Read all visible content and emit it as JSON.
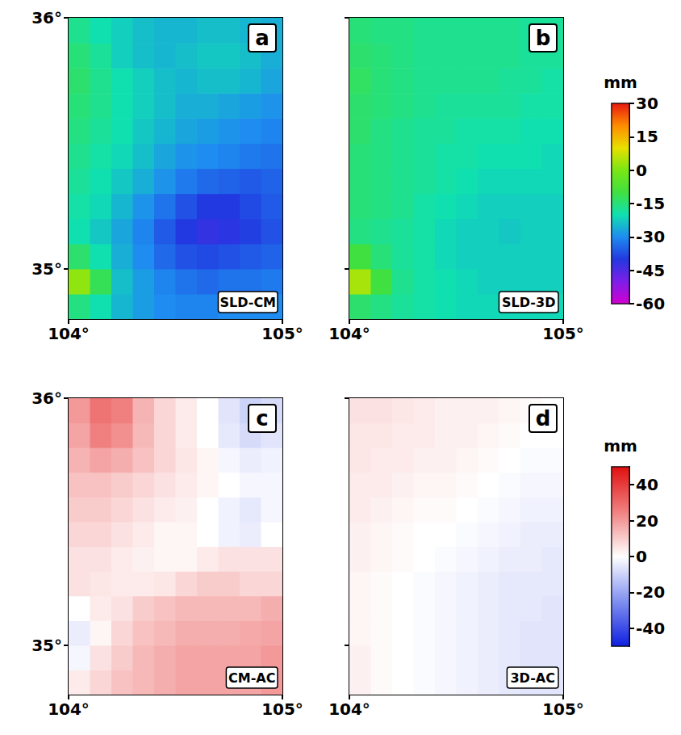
{
  "chart_data": [
    {
      "type": "heatmap",
      "label": "a",
      "title": "SLD-CM",
      "x": [
        104.05,
        104.15,
        104.25,
        104.35,
        104.45,
        104.55,
        104.65,
        104.75,
        104.85,
        104.95
      ],
      "y": [
        34.85,
        34.95,
        35.05,
        35.15,
        35.25,
        35.35,
        35.45,
        35.55,
        35.65,
        35.75,
        35.85,
        35.95
      ],
      "values": [
        [
          -16,
          -20,
          -25,
          -28,
          -30,
          -31,
          -31,
          -30,
          -30,
          -30
        ],
        [
          2,
          -12,
          -24,
          -28,
          -31,
          -33,
          -34,
          -33,
          -33,
          -32
        ],
        [
          -14,
          -20,
          -26,
          -30,
          -34,
          -37,
          -38,
          -37,
          -36,
          -35
        ],
        [
          -20,
          -23,
          -27,
          -31,
          -36,
          -40,
          -42,
          -41,
          -39,
          -37
        ],
        [
          -19,
          -21,
          -25,
          -29,
          -33,
          -37,
          -40,
          -40,
          -38,
          -36
        ],
        [
          -18,
          -20,
          -23,
          -26,
          -29,
          -32,
          -34,
          -35,
          -36,
          -35
        ],
        [
          -17,
          -19,
          -21,
          -24,
          -27,
          -29,
          -30,
          -31,
          -32,
          -33
        ],
        [
          -16,
          -18,
          -20,
          -23,
          -25,
          -27,
          -28,
          -29,
          -30,
          -31
        ],
        [
          -15,
          -17,
          -20,
          -22,
          -24,
          -26,
          -26,
          -27,
          -28,
          -29
        ],
        [
          -14,
          -17,
          -20,
          -22,
          -24,
          -25,
          -24,
          -24,
          -25,
          -27
        ],
        [
          -15,
          -18,
          -22,
          -24,
          -25,
          -24,
          -23,
          -23,
          -24,
          -26
        ],
        [
          -17,
          -20,
          -22,
          -24,
          -25,
          -25,
          -24,
          -24,
          -25,
          -26
        ]
      ],
      "xlim": [
        104,
        105
      ],
      "ylim": [
        34.8,
        36
      ],
      "xticks": [
        {
          "value": 104,
          "label": "104°"
        },
        {
          "value": 105,
          "label": "105°"
        }
      ],
      "yticks": [
        {
          "value": 35,
          "label": "35°"
        },
        {
          "value": 36,
          "label": "36°"
        }
      ]
    },
    {
      "type": "heatmap",
      "label": "b",
      "title": "SLD-3D",
      "x": [
        104.05,
        104.15,
        104.25,
        104.35,
        104.45,
        104.55,
        104.65,
        104.75,
        104.85,
        104.95
      ],
      "y": [
        34.85,
        34.95,
        35.05,
        35.15,
        35.25,
        35.35,
        35.45,
        35.55,
        35.65,
        35.75,
        35.85,
        35.95
      ],
      "values": [
        [
          -14,
          -16,
          -18,
          -19,
          -20,
          -21,
          -21,
          -21,
          -21,
          -21
        ],
        [
          4,
          -10,
          -17,
          -19,
          -20,
          -21,
          -22,
          -22,
          -22,
          -22
        ],
        [
          -10,
          -15,
          -18,
          -19,
          -21,
          -22,
          -22,
          -22,
          -22,
          -22
        ],
        [
          -16,
          -17,
          -18,
          -19,
          -21,
          -22,
          -22,
          -23,
          -22,
          -22
        ],
        [
          -15,
          -16,
          -17,
          -19,
          -20,
          -21,
          -22,
          -22,
          -22,
          -22
        ],
        [
          -15,
          -16,
          -17,
          -18,
          -19,
          -20,
          -21,
          -21,
          -21,
          -21
        ],
        [
          -15,
          -16,
          -17,
          -18,
          -19,
          -19,
          -20,
          -20,
          -20,
          -21
        ],
        [
          -14,
          -16,
          -17,
          -18,
          -18,
          -19,
          -19,
          -19,
          -20,
          -20
        ],
        [
          -14,
          -15,
          -16,
          -17,
          -18,
          -18,
          -18,
          -18,
          -19,
          -19
        ],
        [
          -13,
          -15,
          -16,
          -17,
          -17,
          -17,
          -17,
          -18,
          -18,
          -19
        ],
        [
          -14,
          -15,
          -16,
          -17,
          -17,
          -17,
          -17,
          -17,
          -18,
          -18
        ],
        [
          -15,
          -16,
          -16,
          -17,
          -17,
          -17,
          -17,
          -17,
          -18,
          -18
        ]
      ],
      "xlim": [
        104,
        105
      ],
      "ylim": [
        34.8,
        36
      ],
      "xticks": [
        {
          "value": 104,
          "label": "104°"
        },
        {
          "value": 105,
          "label": "105°"
        }
      ],
      "yticks": [
        {
          "value": 35,
          "label": "35°"
        },
        {
          "value": 36,
          "label": "36°"
        }
      ],
      "tick_labels": "x"
    },
    {
      "type": "heatmap",
      "label": "c",
      "title": "CM-AC",
      "x": [
        104.05,
        104.15,
        104.25,
        104.35,
        104.45,
        104.55,
        104.65,
        104.75,
        104.85,
        104.95
      ],
      "y": [
        34.85,
        34.95,
        35.05,
        35.15,
        35.25,
        35.35,
        35.45,
        35.55,
        35.65,
        35.75,
        35.85,
        35.95
      ],
      "values": [
        [
          4,
          8,
          12,
          14,
          16,
          18,
          18,
          18,
          18,
          20
        ],
        [
          -2,
          6,
          10,
          14,
          16,
          18,
          18,
          18,
          18,
          20
        ],
        [
          -4,
          2,
          8,
          12,
          14,
          16,
          16,
          16,
          17,
          18
        ],
        [
          0,
          4,
          6,
          10,
          12,
          14,
          14,
          14,
          14,
          16
        ],
        [
          6,
          5,
          4,
          4,
          5,
          8,
          10,
          10,
          8,
          8
        ],
        [
          6,
          6,
          4,
          3,
          2,
          2,
          4,
          6,
          6,
          6
        ],
        [
          8,
          8,
          6,
          4,
          2,
          2,
          0,
          -3,
          -4,
          0
        ],
        [
          10,
          10,
          8,
          6,
          4,
          3,
          0,
          -3,
          -5,
          -2
        ],
        [
          12,
          12,
          10,
          8,
          6,
          4,
          2,
          0,
          -2,
          -2
        ],
        [
          15,
          18,
          16,
          12,
          8,
          5,
          2,
          -2,
          -4,
          -3
        ],
        [
          18,
          25,
          22,
          14,
          8,
          4,
          0,
          -5,
          -8,
          -6
        ],
        [
          20,
          28,
          25,
          15,
          8,
          4,
          0,
          -6,
          -10,
          -8
        ]
      ],
      "xlim": [
        104,
        105
      ],
      "ylim": [
        34.8,
        36
      ],
      "xticks": [
        {
          "value": 104,
          "label": "104°"
        },
        {
          "value": 105,
          "label": "105°"
        }
      ],
      "yticks": [
        {
          "value": 35,
          "label": "35°"
        },
        {
          "value": 36,
          "label": "36°"
        }
      ]
    },
    {
      "type": "heatmap",
      "label": "d",
      "title": "3D-AC",
      "x": [
        104.05,
        104.15,
        104.25,
        104.35,
        104.45,
        104.55,
        104.65,
        104.75,
        104.85,
        104.95
      ],
      "y": [
        34.85,
        34.95,
        35.05,
        35.15,
        35.25,
        35.35,
        35.45,
        35.55,
        35.65,
        35.75,
        35.85,
        35.95
      ],
      "values": [
        [
          3,
          1,
          0,
          -1,
          -2,
          -3,
          -4,
          -5,
          -6,
          -6
        ],
        [
          3,
          1,
          0,
          -1,
          -2,
          -3,
          -4,
          -5,
          -6,
          -6
        ],
        [
          2,
          1,
          0,
          -1,
          -2,
          -3,
          -4,
          -5,
          -6,
          -6
        ],
        [
          2,
          1,
          0,
          -1,
          -2,
          -3,
          -4,
          -5,
          -5,
          -6
        ],
        [
          2,
          1,
          0,
          -1,
          -2,
          -3,
          -4,
          -5,
          -5,
          -5
        ],
        [
          3,
          2,
          1,
          0,
          -1,
          -2,
          -3,
          -4,
          -4,
          -5
        ],
        [
          3,
          2,
          1,
          0,
          0,
          -1,
          -2,
          -3,
          -4,
          -4
        ],
        [
          4,
          3,
          2,
          1,
          1,
          0,
          -1,
          -2,
          -3,
          -3
        ],
        [
          4,
          4,
          3,
          2,
          2,
          1,
          0,
          -1,
          -2,
          -2
        ],
        [
          5,
          4,
          4,
          3,
          3,
          2,
          1,
          0,
          -1,
          -1
        ],
        [
          5,
          5,
          4,
          4,
          3,
          3,
          2,
          1,
          0,
          0
        ],
        [
          6,
          6,
          5,
          4,
          3,
          3,
          3,
          2,
          1,
          0
        ]
      ],
      "xlim": [
        104,
        105
      ],
      "ylim": [
        34.8,
        36
      ],
      "xticks": [
        {
          "value": 104,
          "label": "104°"
        },
        {
          "value": 105,
          "label": "105°"
        }
      ],
      "yticks": [
        {
          "value": 35,
          "label": "35°"
        },
        {
          "value": 36,
          "label": "36°"
        }
      ],
      "tick_labels": "x"
    }
  ],
  "color_bars": [
    {
      "label": "mm",
      "panels": [
        "a",
        "b"
      ],
      "range": [
        -60,
        30
      ],
      "ticks": [
        -60,
        -45,
        -30,
        -15,
        0,
        15,
        30
      ],
      "colors": [
        "#d000d0",
        "#7c1ee8",
        "#2238e0",
        "#1e8cf0",
        "#10e0b0",
        "#40e040",
        "#7ae614",
        "#e8e000",
        "#ff8c00",
        "#e81a10"
      ]
    },
    {
      "label": "mm",
      "panels": [
        "c",
        "d"
      ],
      "range": [
        -50,
        50
      ],
      "ticks": [
        -40,
        -20,
        0,
        20,
        40
      ],
      "colors": [
        "#1020e0",
        "#8090f0",
        "#ffffff",
        "#f08080",
        "#e01010"
      ]
    }
  ]
}
